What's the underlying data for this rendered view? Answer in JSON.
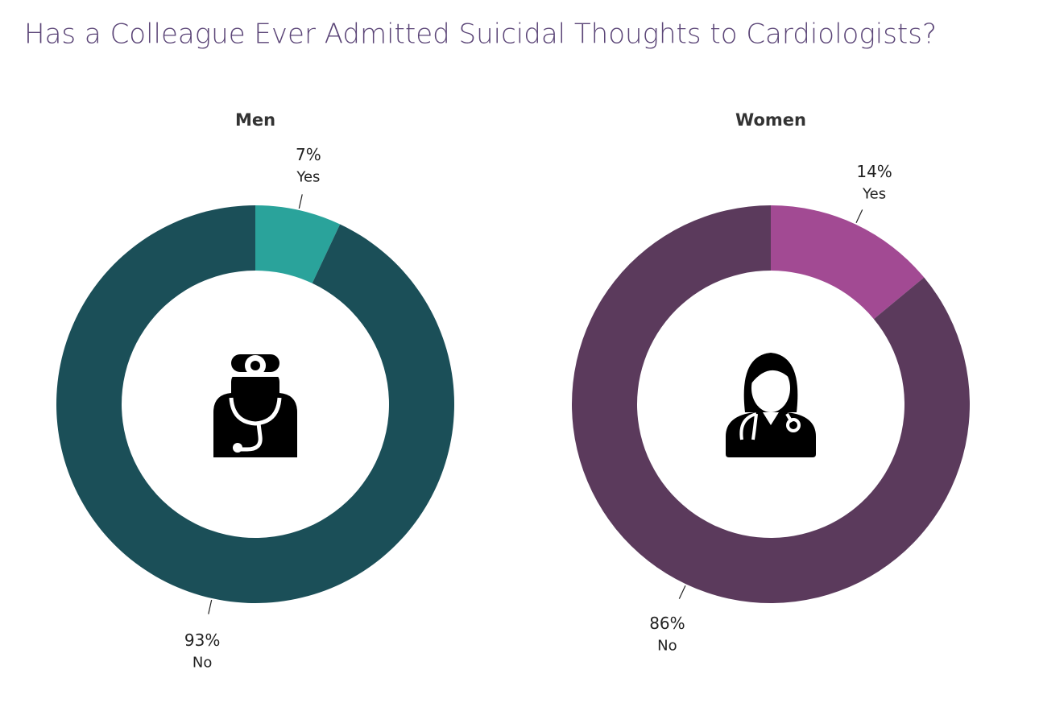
{
  "title": "Has a Colleague Ever Admitted Suicidal Thoughts to Cardiologists?",
  "chart_data": [
    {
      "type": "donut",
      "title": "Men",
      "categories": [
        "Yes",
        "No"
      ],
      "values": [
        7,
        93
      ],
      "value_labels": [
        "7%",
        "93%"
      ],
      "colors": [
        "#2aa39b",
        "#1b4f58"
      ]
    },
    {
      "type": "donut",
      "title": "Women",
      "categories": [
        "Yes",
        "No"
      ],
      "values": [
        14,
        86
      ],
      "value_labels": [
        "14%",
        "86%"
      ],
      "colors": [
        "#a24a93",
        "#5b3a5c"
      ]
    }
  ]
}
